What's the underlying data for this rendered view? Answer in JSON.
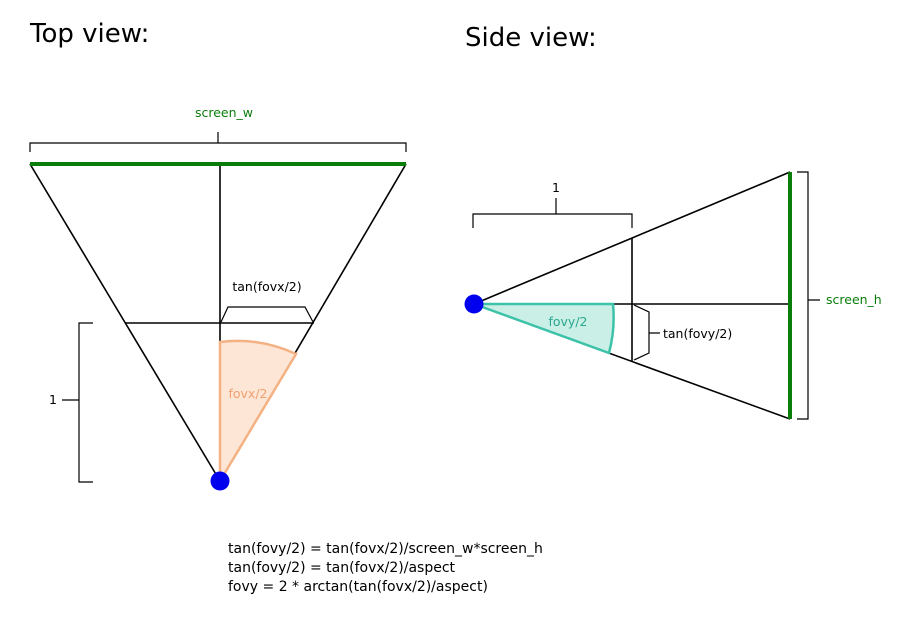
{
  "top_view": {
    "title": "Top view:",
    "screen_label": "screen_w",
    "tan_label": "tan(fovx/2)",
    "angle_label": "fovx/2",
    "unit_label": "1",
    "colors": {
      "screen": "#0a7d0a",
      "angle_fill": "#fde6d6",
      "angle_stroke": "#f4b183",
      "eye": "#0000ee"
    }
  },
  "side_view": {
    "title": "Side view:",
    "screen_label": "screen_h",
    "tan_label": "tan(fovy/2)",
    "angle_label": "fovy/2",
    "unit_label": "1",
    "colors": {
      "screen": "#0a7d0a",
      "angle_fill": "#c9efe6",
      "angle_stroke": "#3cc2a8",
      "eye": "#0000ee"
    }
  },
  "formulas": [
    "tan(fovy/2) = tan(fovx/2)/screen_w*screen_h",
    "tan(fovy/2) = tan(fovx/2)/aspect",
    "fovy = 2 * arctan(tan(fovx/2)/aspect)"
  ]
}
